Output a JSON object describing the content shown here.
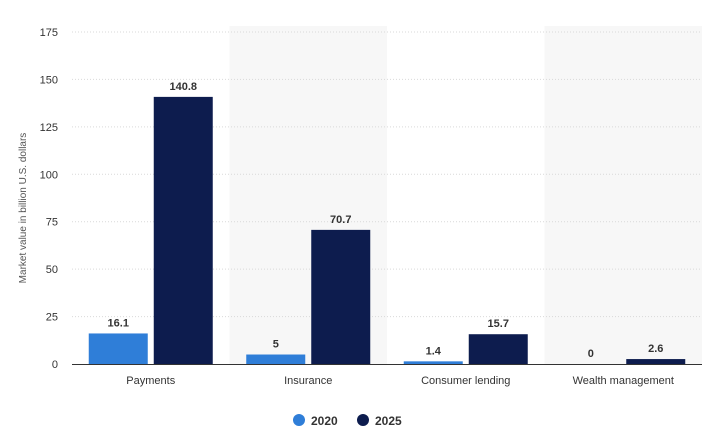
{
  "chart_data": {
    "type": "bar",
    "categories": [
      "Payments",
      "Insurance",
      "Consumer lending",
      "Wealth management"
    ],
    "series": [
      {
        "name": "2020",
        "values": [
          16.1,
          5,
          1.4,
          0
        ],
        "labels": [
          "16.1",
          "5",
          "1.4",
          "0"
        ],
        "color": "#2f7ed8"
      },
      {
        "name": "2025",
        "values": [
          140.8,
          70.7,
          15.7,
          2.6
        ],
        "labels": [
          "140.8",
          "70.7",
          "15.7",
          "2.6"
        ],
        "color": "#0d1c4e"
      }
    ],
    "ylabel": "Market value in billion U.S. dollars",
    "ylim": [
      0,
      175
    ],
    "yticks": [
      "0",
      "25",
      "50",
      "75",
      "100",
      "125",
      "150",
      "175"
    ],
    "ytick_values": [
      0,
      25,
      50,
      75,
      100,
      125,
      150,
      175
    ],
    "grid": true,
    "legend_position": "bottom-center",
    "band_color": "#f7f7f7"
  }
}
